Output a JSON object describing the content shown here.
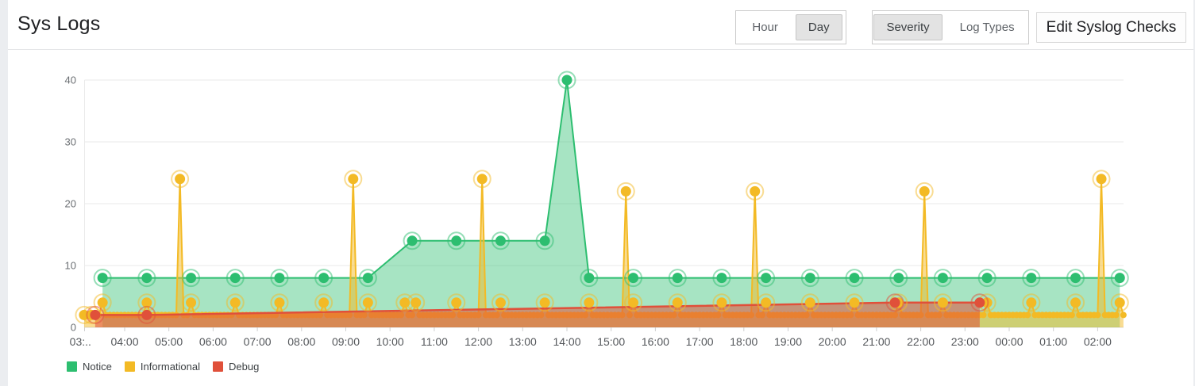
{
  "page": {
    "title": "Sys Logs"
  },
  "controls": {
    "time_range_toggle": {
      "options": [
        "Hour",
        "Day"
      ],
      "selected": "Day"
    },
    "grouping_toggle": {
      "options": [
        "Severity",
        "Log Types"
      ],
      "selected": "Severity"
    },
    "edit_button": {
      "label": "Edit Syslog Checks"
    }
  },
  "chart_data": {
    "type": "area",
    "title": "Sys Logs",
    "ylim": [
      0,
      45
    ],
    "yticks": [
      0,
      10,
      20,
      30,
      40
    ],
    "grid": "horizontal",
    "legend_position": "bottom-left",
    "x_range": [
      "03:05",
      "02:35"
    ],
    "x_ticks": [
      {
        "label": "03:..",
        "time": "03:00"
      },
      {
        "label": "04:00",
        "time": "04:00"
      },
      {
        "label": "05:00",
        "time": "05:00"
      },
      {
        "label": "06:00",
        "time": "06:00"
      },
      {
        "label": "07:00",
        "time": "07:00"
      },
      {
        "label": "08:00",
        "time": "08:00"
      },
      {
        "label": "09:00",
        "time": "09:00"
      },
      {
        "label": "10:00",
        "time": "10:00"
      },
      {
        "label": "11:00",
        "time": "11:00"
      },
      {
        "label": "12:00",
        "time": "12:00"
      },
      {
        "label": "13:00",
        "time": "13:00"
      },
      {
        "label": "14:00",
        "time": "14:00"
      },
      {
        "label": "15:00",
        "time": "15:00"
      },
      {
        "label": "16:00",
        "time": "16:00"
      },
      {
        "label": "17:00",
        "time": "17:00"
      },
      {
        "label": "18:00",
        "time": "18:00"
      },
      {
        "label": "19:00",
        "time": "19:00"
      },
      {
        "label": "20:00",
        "time": "20:00"
      },
      {
        "label": "21:00",
        "time": "21:00"
      },
      {
        "label": "22:00",
        "time": "22:00"
      },
      {
        "label": "23:00",
        "time": "23:00"
      },
      {
        "label": "00:00",
        "time": "00:00"
      },
      {
        "label": "01:00",
        "time": "01:00"
      },
      {
        "label": "02:00",
        "time": "02:00"
      }
    ],
    "series": [
      {
        "name": "Notice",
        "color": "#2dbe70",
        "fill": "rgba(45,190,112,0.42)",
        "line_width": 2,
        "points": [
          [
            "03:30",
            8
          ],
          [
            "04:30",
            8
          ],
          [
            "05:30",
            8
          ],
          [
            "06:30",
            8
          ],
          [
            "07:30",
            8
          ],
          [
            "08:30",
            8
          ],
          [
            "09:30",
            8
          ],
          [
            "10:30",
            14
          ],
          [
            "11:30",
            14
          ],
          [
            "12:30",
            14
          ],
          [
            "13:30",
            14
          ],
          [
            "14:00",
            40
          ],
          [
            "14:30",
            8
          ],
          [
            "15:30",
            8
          ],
          [
            "16:30",
            8
          ],
          [
            "17:30",
            8
          ],
          [
            "18:30",
            8
          ],
          [
            "19:30",
            8
          ],
          [
            "20:30",
            8
          ],
          [
            "21:30",
            8
          ],
          [
            "22:30",
            8
          ],
          [
            "23:30",
            8
          ],
          [
            "00:30",
            8
          ],
          [
            "01:30",
            8
          ],
          [
            "02:30",
            8
          ]
        ]
      },
      {
        "name": "Informational",
        "color": "#f3ba25",
        "fill": "rgba(243,186,37,0.5)",
        "line_width": 2,
        "baseline": {
          "value": 2,
          "step_minutes": 5,
          "from": "03:05",
          "to": "02:35"
        },
        "points": [
          [
            "03:05",
            2
          ],
          [
            "03:15",
            2
          ],
          [
            "03:30",
            4
          ],
          [
            "04:30",
            4
          ],
          [
            "05:15",
            24
          ],
          [
            "05:30",
            4
          ],
          [
            "06:30",
            4
          ],
          [
            "07:30",
            4
          ],
          [
            "08:30",
            4
          ],
          [
            "09:10",
            24
          ],
          [
            "09:30",
            4
          ],
          [
            "10:20",
            4
          ],
          [
            "10:35",
            4
          ],
          [
            "11:30",
            4
          ],
          [
            "12:05",
            24
          ],
          [
            "12:30",
            4
          ],
          [
            "13:30",
            4
          ],
          [
            "14:30",
            4
          ],
          [
            "15:20",
            22
          ],
          [
            "15:30",
            4
          ],
          [
            "16:30",
            4
          ],
          [
            "17:30",
            4
          ],
          [
            "18:15",
            22
          ],
          [
            "18:30",
            4
          ],
          [
            "19:30",
            4
          ],
          [
            "20:30",
            4
          ],
          [
            "21:30",
            4
          ],
          [
            "22:05",
            22
          ],
          [
            "22:30",
            4
          ],
          [
            "23:30",
            4
          ],
          [
            "00:30",
            4
          ],
          [
            "01:30",
            4
          ],
          [
            "02:05",
            24
          ],
          [
            "02:30",
            4
          ]
        ]
      },
      {
        "name": "Debug",
        "color": "#e0503a",
        "fill": "rgba(224,80,58,0.55)",
        "line_width": 2.5,
        "points": [
          [
            "03:20",
            2
          ],
          [
            "04:30",
            2
          ],
          [
            "21:25",
            4
          ],
          [
            "23:20",
            4
          ]
        ]
      }
    ],
    "legend": [
      {
        "label": "Notice",
        "color": "#2dbe70"
      },
      {
        "label": "Informational",
        "color": "#f3ba25"
      },
      {
        "label": "Debug",
        "color": "#e0503a"
      }
    ]
  }
}
